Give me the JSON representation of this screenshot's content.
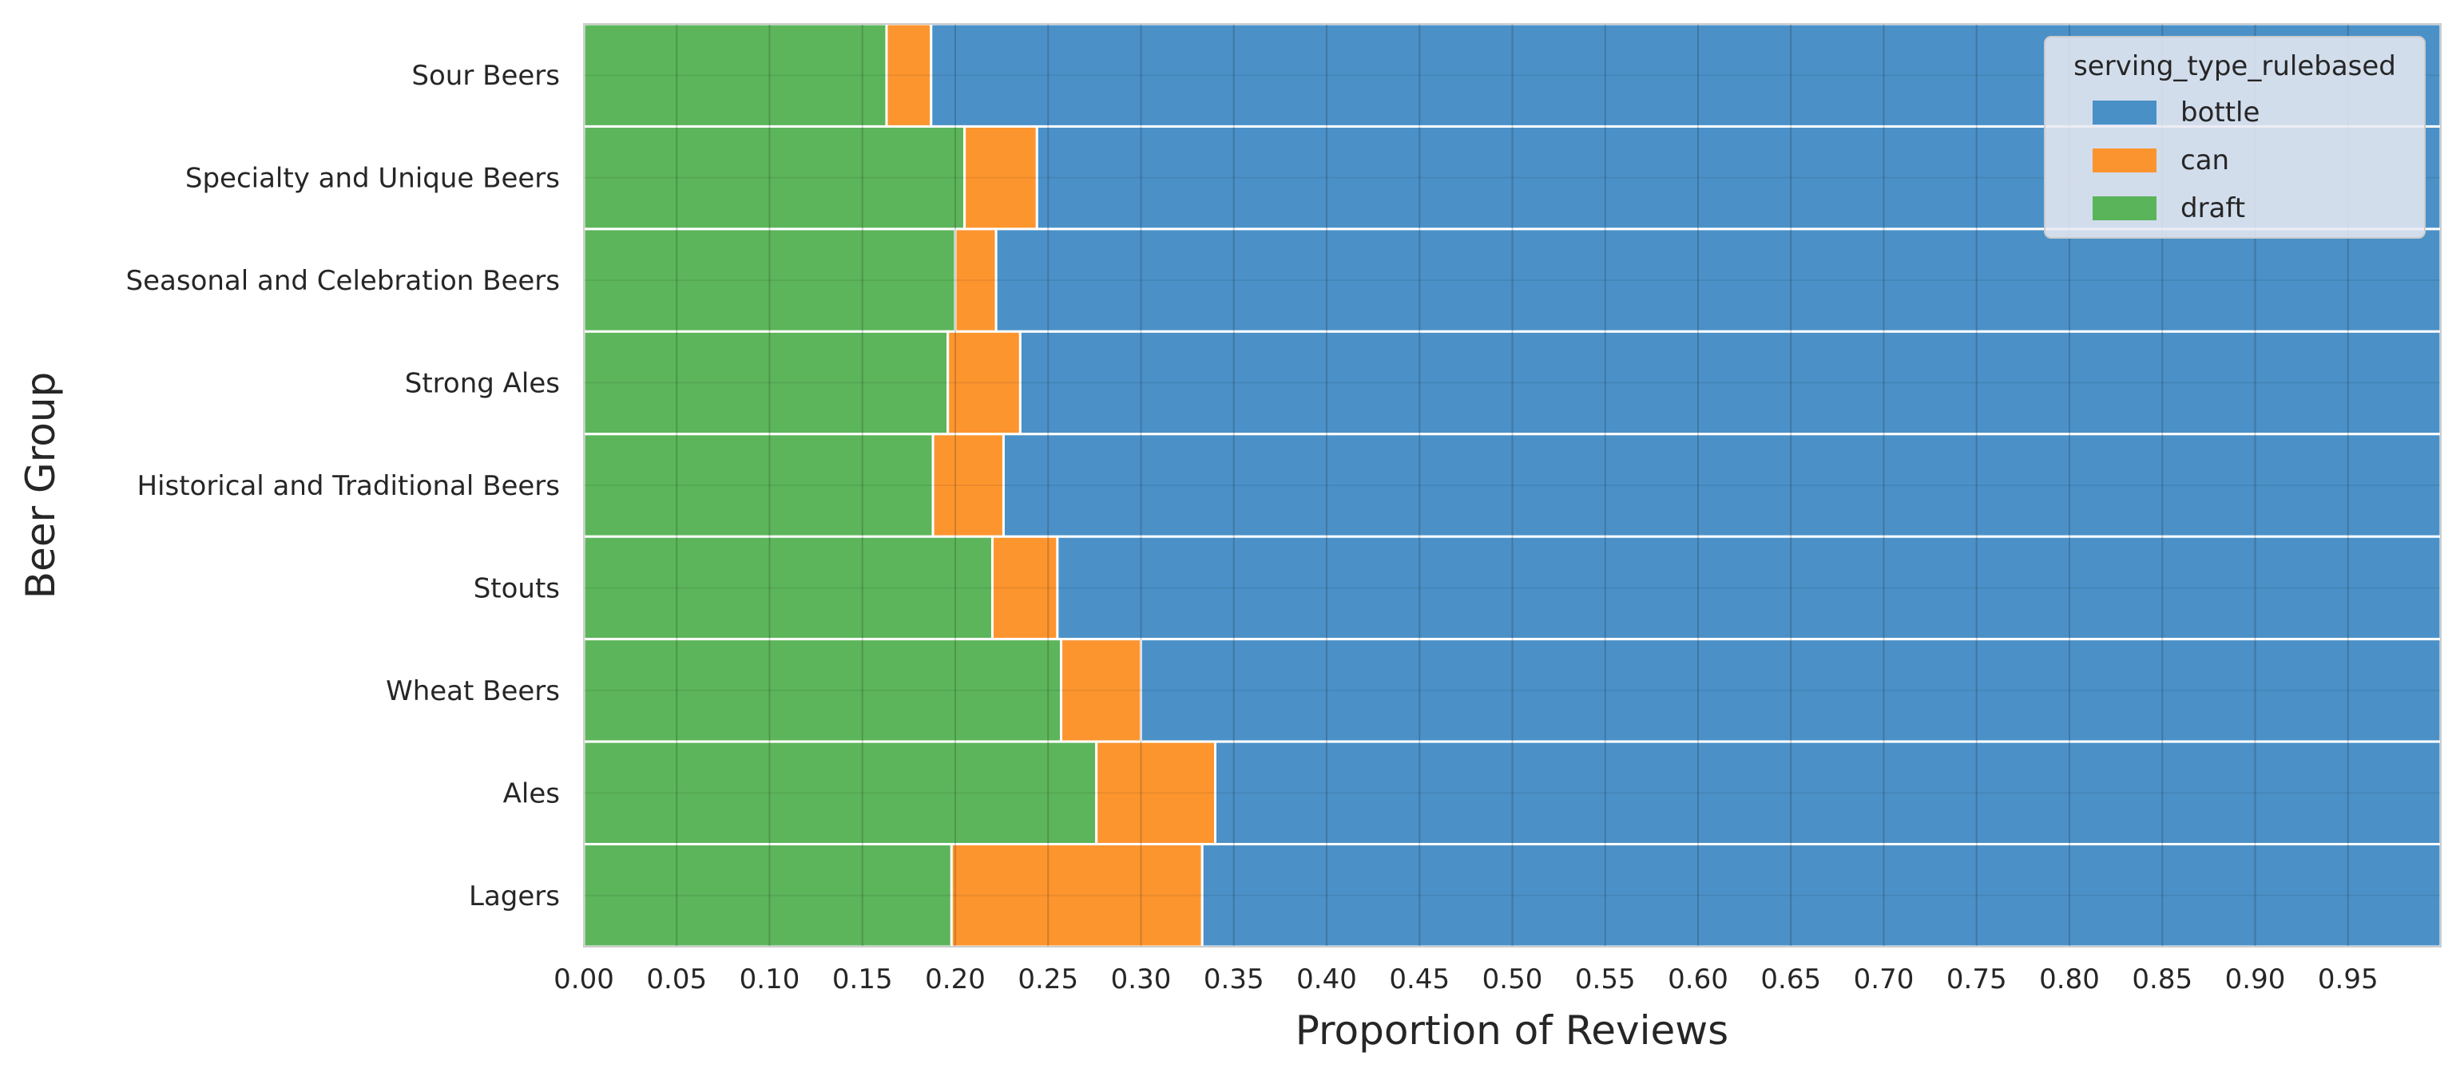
{
  "chart_data": {
    "type": "bar",
    "orientation": "horizontal",
    "stacked": true,
    "normalized": true,
    "xlabel": "Proportion of Reviews",
    "ylabel": "Beer Group",
    "xlim": [
      0,
      1
    ],
    "xticks": [
      "0.00",
      "0.05",
      "0.10",
      "0.15",
      "0.20",
      "0.25",
      "0.30",
      "0.35",
      "0.40",
      "0.45",
      "0.50",
      "0.55",
      "0.60",
      "0.65",
      "0.70",
      "0.75",
      "0.80",
      "0.85",
      "0.90",
      "0.95"
    ],
    "grid": true,
    "legend_position": "top-right",
    "legend_title": "serving_type_rulebased",
    "categories": [
      "Sour Beers",
      "Specialty and Unique Beers",
      "Seasonal and Celebration Beers",
      "Strong Ales",
      "Historical and Traditional Beers",
      "Stouts",
      "Wheat Beers",
      "Ales",
      "Lagers"
    ],
    "series": [
      {
        "name": "draft",
        "color": "#4daf4a",
        "values": [
          0.163,
          0.205,
          0.2,
          0.196,
          0.188,
          0.22,
          0.257,
          0.276,
          0.198
        ]
      },
      {
        "name": "can",
        "color": "#ff8c1a",
        "values": [
          0.024,
          0.039,
          0.022,
          0.039,
          0.038,
          0.035,
          0.043,
          0.064,
          0.135
        ]
      },
      {
        "name": "bottle",
        "color": "#3a87c3",
        "values": [
          0.813,
          0.756,
          0.778,
          0.765,
          0.774,
          0.745,
          0.7,
          0.66,
          0.667
        ]
      }
    ],
    "legend_order": [
      "bottle",
      "can",
      "draft"
    ]
  }
}
